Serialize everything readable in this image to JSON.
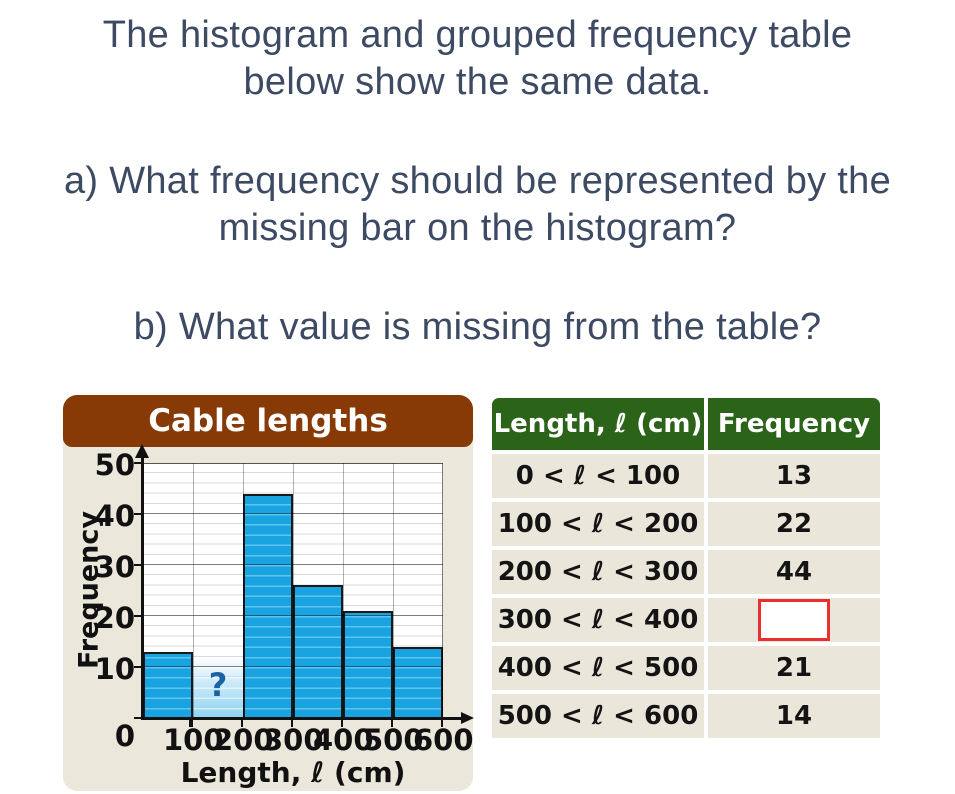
{
  "page": {
    "text_color": "#3d4a63",
    "intro": {
      "line1": "The histogram and grouped frequency table",
      "line2": "below show the same data."
    },
    "question_a": {
      "line1": "a) What frequency should be represented by the",
      "line2": "missing bar on the histogram?"
    },
    "question_b": {
      "text": "b) What value is missing from the table?"
    }
  },
  "chart_data": {
    "type": "bar",
    "title": "Cable lengths",
    "xlabel": "Length, ℓ (cm)",
    "ylabel": "Frequency",
    "origin_label": "0",
    "categories": [
      "0–100",
      "100–200",
      "200–300",
      "300–400",
      "400–500",
      "500–600"
    ],
    "values": [
      13,
      null,
      44,
      26,
      21,
      14
    ],
    "missing_bar_index": 1,
    "missing_bar_label": "?",
    "x_ticks": [
      0,
      100,
      200,
      300,
      400,
      500,
      600
    ],
    "y_ticks": [
      0,
      10,
      20,
      30,
      40,
      50
    ],
    "xlim": [
      0,
      600
    ],
    "ylim": [
      0,
      50
    ],
    "grid": {
      "minor_horizontal_every": 2,
      "major_horizontal_every": 10,
      "vertical_every": 100
    },
    "legend": "none",
    "colors": {
      "bar": "#19a3e1",
      "bar_stripe": "#5ec4ee",
      "panel_header": "#883a06",
      "panel_background": "#ece7db",
      "question_mark": "#1b62a3"
    }
  },
  "table": {
    "headers": [
      "Length, ℓ (cm)",
      "Frequency"
    ],
    "rows": [
      {
        "range": "0 < ℓ < 100",
        "frequency": "13",
        "missing": false
      },
      {
        "range": "100 < ℓ < 200",
        "frequency": "22",
        "missing": false
      },
      {
        "range": "200 < ℓ < 300",
        "frequency": "44",
        "missing": false
      },
      {
        "range": "300 < ℓ < 400",
        "frequency": "",
        "missing": true
      },
      {
        "range": "400 < ℓ < 500",
        "frequency": "21",
        "missing": false
      },
      {
        "range": "500 < ℓ < 600",
        "frequency": "14",
        "missing": false
      }
    ],
    "colors": {
      "header_bg": "#2b6318",
      "row_bg": "#ebe6da",
      "missing_box_border": "#ea2f2f"
    }
  }
}
